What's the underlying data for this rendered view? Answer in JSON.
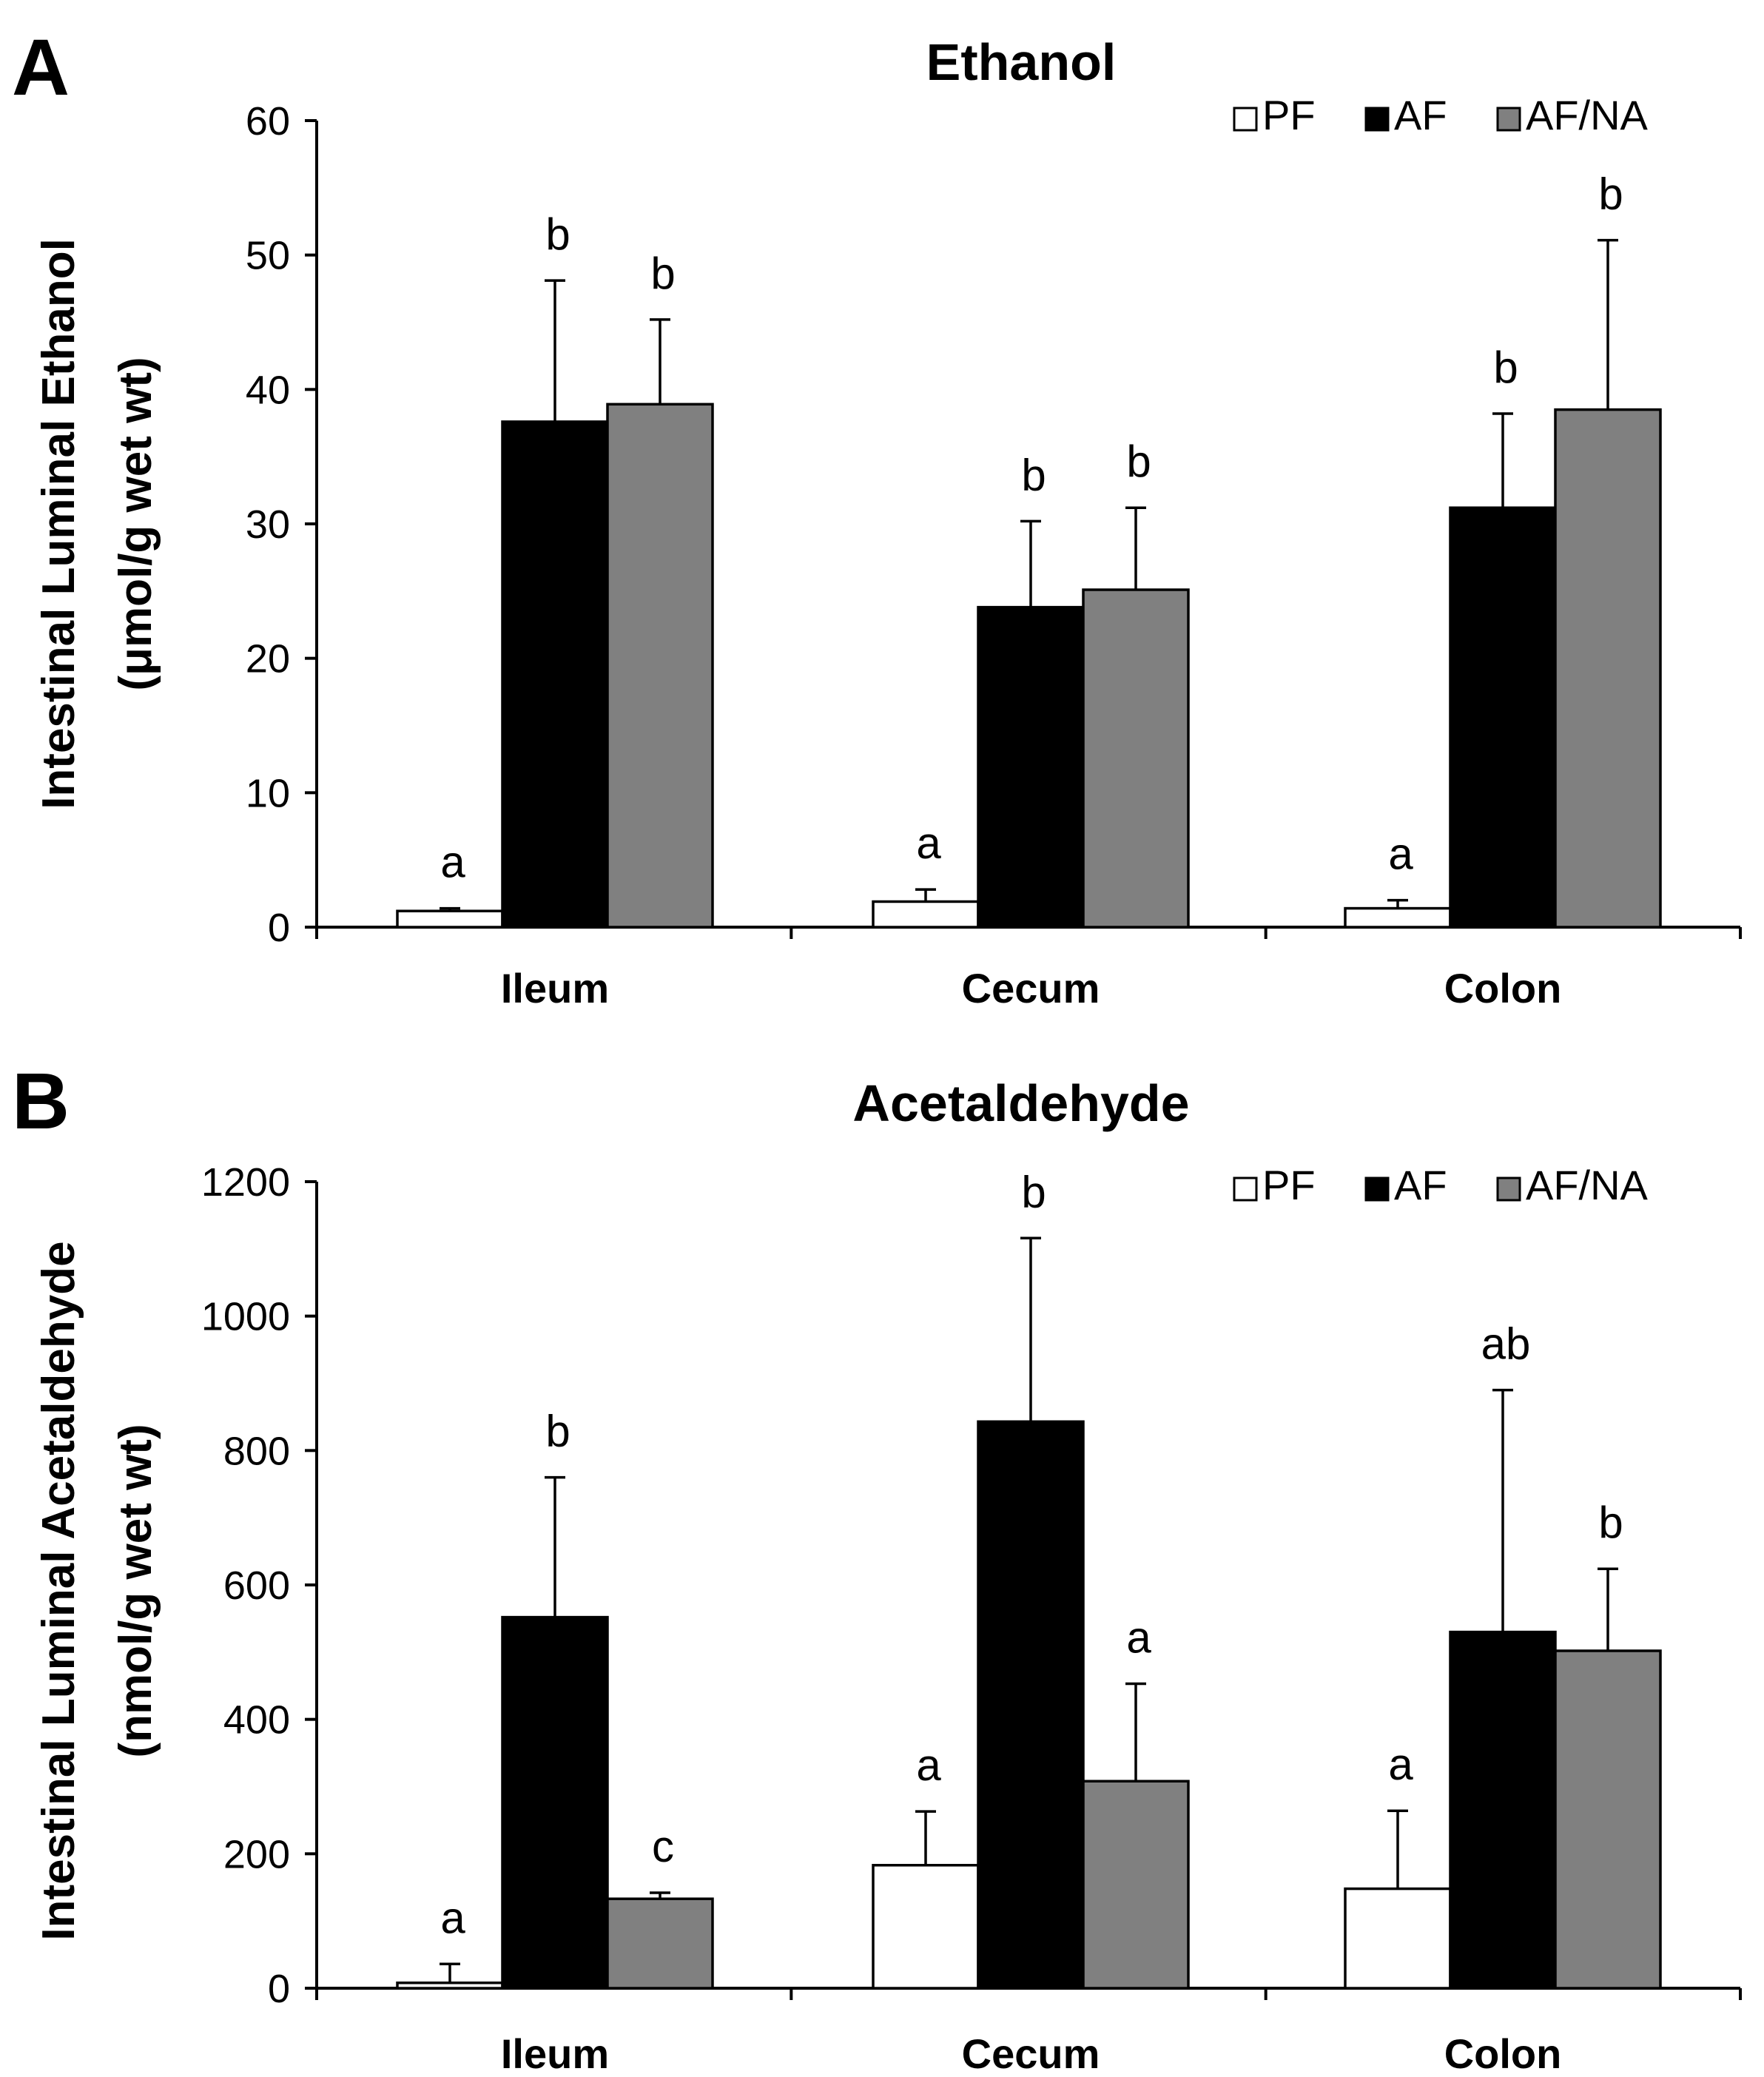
{
  "chart_data": [
    {
      "type": "bar",
      "panel": "A",
      "title": "Ethanol",
      "ylabel": [
        "Intestinal Luminal Ethanol",
        "(μmol/g wet wt)"
      ],
      "xlabel": "",
      "ylim": [
        0,
        60
      ],
      "yticks": [
        0,
        10,
        20,
        30,
        40,
        50,
        60
      ],
      "grid": false,
      "legend_position": "top-right",
      "categories": [
        "Ileum",
        "Cecum",
        "Colon"
      ],
      "series": [
        {
          "name": "PF",
          "color": "#ffffff",
          "values": [
            1.2,
            1.9,
            1.4
          ],
          "errors": [
            0.2,
            0.9,
            0.6
          ],
          "labels": [
            "a",
            "a",
            "a"
          ]
        },
        {
          "name": "AF",
          "color": "#000000",
          "values": [
            37.6,
            23.8,
            31.2
          ],
          "errors": [
            10.5,
            6.4,
            7.0
          ],
          "labels": [
            "b",
            "b",
            "b"
          ]
        },
        {
          "name": "AF/NA",
          "color": "#808080",
          "values": [
            38.9,
            25.1,
            38.5
          ],
          "errors": [
            6.3,
            6.1,
            12.6
          ],
          "labels": [
            "b",
            "b",
            "b"
          ]
        }
      ]
    },
    {
      "type": "bar",
      "panel": "B",
      "title": "Acetaldehyde",
      "ylabel": [
        "Intestinal Luminal Acetaldehyde",
        "(nmol/g wet wt)"
      ],
      "xlabel": "",
      "ylim": [
        0,
        1200
      ],
      "yticks": [
        0,
        200,
        400,
        600,
        800,
        1000,
        1200
      ],
      "grid": false,
      "legend_position": "top-right",
      "categories": [
        "Ileum",
        "Cecum",
        "Colon"
      ],
      "series": [
        {
          "name": "PF",
          "color": "#ffffff",
          "values": [
            8,
            183,
            148
          ],
          "errors": [
            28,
            80,
            116
          ],
          "labels": [
            "a",
            "a",
            "a"
          ]
        },
        {
          "name": "AF",
          "color": "#000000",
          "values": [
            552,
            843,
            530
          ],
          "errors": [
            208,
            273,
            360
          ],
          "labels": [
            "b",
            "b",
            "ab"
          ]
        },
        {
          "name": "AF/NA",
          "color": "#808080",
          "values": [
            133,
            308,
            502
          ],
          "errors": [
            9,
            145,
            122
          ],
          "labels": [
            "c",
            "a",
            "b"
          ]
        }
      ]
    }
  ]
}
